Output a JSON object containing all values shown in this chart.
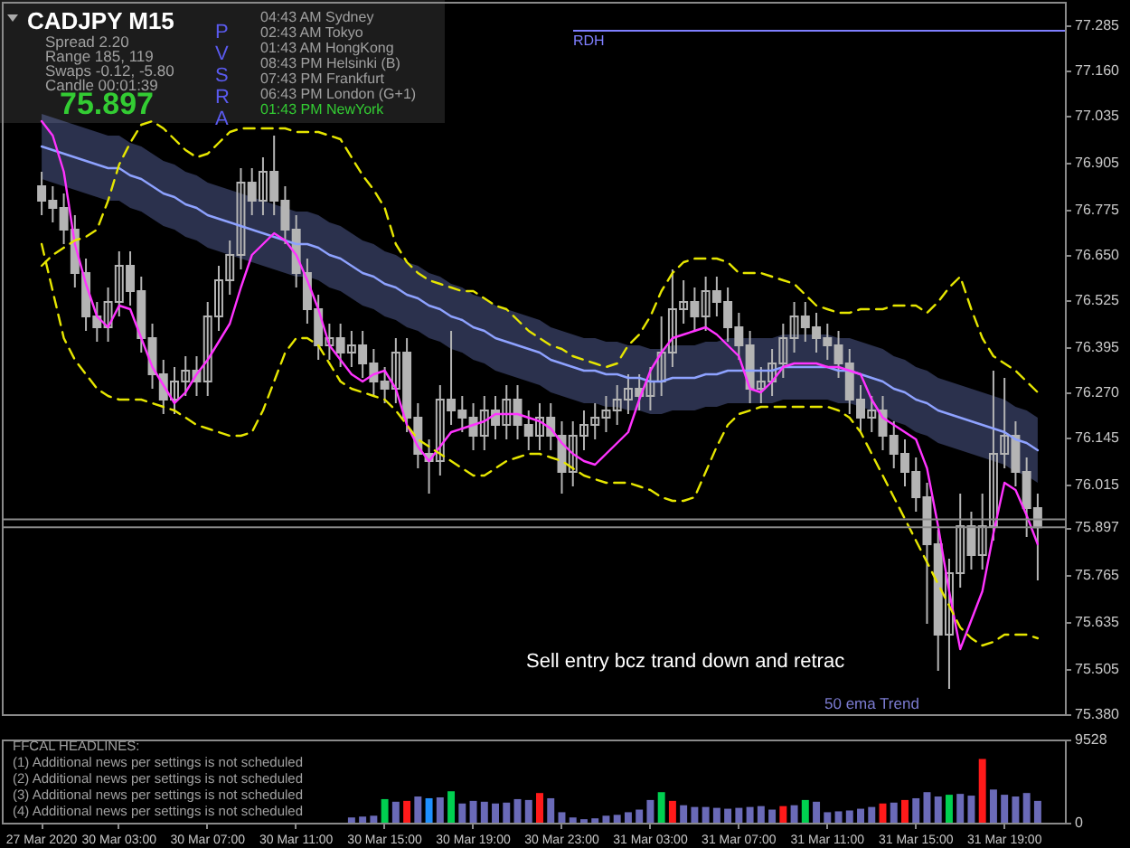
{
  "chart_data": [
    {
      "type": "candlestick",
      "title": "CADJPY M15",
      "categories": [
        null,
        null,
        null,
        null,
        null,
        null,
        null,
        null,
        null,
        null,
        null,
        null,
        null,
        null,
        null,
        null,
        null,
        null,
        null,
        null,
        null,
        null,
        null,
        null,
        null,
        null,
        null,
        null,
        null,
        null,
        null,
        null,
        null,
        null,
        null,
        null,
        null,
        null,
        null,
        null,
        null,
        null,
        null,
        null,
        null,
        null,
        null,
        null,
        null,
        null,
        null,
        null,
        null,
        null,
        null,
        null,
        null,
        null,
        null,
        null,
        null,
        null,
        null,
        null,
        null,
        null,
        null,
        null,
        null,
        null,
        null,
        null,
        null,
        null,
        null,
        null,
        null,
        null,
        null,
        null,
        null,
        null,
        null,
        null,
        null,
        null,
        null,
        null,
        null,
        null,
        null
      ],
      "ohlc": [
        [
          76.84,
          76.88,
          76.76,
          76.8
        ],
        [
          76.8,
          76.84,
          76.74,
          76.78
        ],
        [
          76.78,
          76.82,
          76.68,
          76.72
        ],
        [
          76.72,
          76.76,
          76.56,
          76.6
        ],
        [
          76.6,
          76.64,
          76.44,
          76.48
        ],
        [
          76.48,
          76.52,
          76.41,
          76.45
        ],
        [
          76.45,
          76.56,
          76.41,
          76.52
        ],
        [
          76.52,
          76.66,
          76.48,
          76.62
        ],
        [
          76.62,
          76.66,
          76.51,
          76.55
        ],
        [
          76.55,
          76.59,
          76.38,
          76.42
        ],
        [
          76.42,
          76.46,
          76.28,
          76.32
        ],
        [
          76.32,
          76.36,
          76.21,
          76.25
        ],
        [
          76.25,
          76.34,
          76.21,
          76.3
        ],
        [
          76.3,
          76.37,
          76.26,
          76.33
        ],
        [
          76.33,
          76.37,
          76.26,
          76.3
        ],
        [
          76.3,
          76.52,
          76.26,
          76.48
        ],
        [
          76.48,
          76.62,
          76.44,
          76.58
        ],
        [
          76.58,
          76.69,
          76.54,
          76.65
        ],
        [
          76.65,
          76.89,
          76.61,
          76.85
        ],
        [
          76.85,
          76.89,
          76.76,
          76.8
        ],
        [
          76.8,
          76.92,
          76.76,
          76.88
        ],
        [
          76.88,
          76.98,
          76.76,
          76.8
        ],
        [
          76.8,
          76.84,
          76.68,
          76.72
        ],
        [
          76.72,
          76.76,
          76.56,
          76.6
        ],
        [
          76.6,
          76.64,
          76.46,
          76.5
        ],
        [
          76.5,
          76.54,
          76.36,
          76.4
        ],
        [
          76.4,
          76.46,
          76.36,
          76.42
        ],
        [
          76.42,
          76.46,
          76.34,
          76.38
        ],
        [
          76.38,
          76.44,
          76.34,
          76.4
        ],
        [
          76.4,
          76.44,
          76.31,
          76.35
        ],
        [
          76.35,
          76.39,
          76.26,
          76.3
        ],
        [
          76.3,
          76.34,
          76.24,
          76.28
        ],
        [
          76.28,
          76.42,
          76.24,
          76.38
        ],
        [
          76.38,
          76.42,
          76.16,
          76.2
        ],
        [
          76.2,
          76.24,
          76.06,
          76.1
        ],
        [
          76.1,
          76.14,
          75.99,
          76.08
        ],
        [
          76.08,
          76.29,
          76.04,
          76.25
        ],
        [
          76.25,
          76.44,
          76.18,
          76.22
        ],
        [
          76.22,
          76.26,
          76.16,
          76.2
        ],
        [
          76.2,
          76.24,
          76.11,
          76.15
        ],
        [
          76.15,
          76.26,
          76.11,
          76.22
        ],
        [
          76.22,
          76.26,
          76.14,
          76.18
        ],
        [
          76.18,
          76.29,
          76.14,
          76.25
        ],
        [
          76.25,
          76.29,
          76.14,
          76.18
        ],
        [
          76.18,
          76.22,
          76.11,
          76.15
        ],
        [
          76.15,
          76.24,
          76.11,
          76.2
        ],
        [
          76.2,
          76.24,
          76.11,
          76.15
        ],
        [
          76.15,
          76.19,
          75.99,
          76.05
        ],
        [
          76.05,
          76.19,
          76.01,
          76.15
        ],
        [
          76.15,
          76.22,
          76.11,
          76.18
        ],
        [
          76.18,
          76.24,
          76.14,
          76.2
        ],
        [
          76.2,
          76.26,
          76.16,
          76.22
        ],
        [
          76.22,
          76.29,
          76.18,
          76.25
        ],
        [
          76.25,
          76.32,
          76.21,
          76.28
        ],
        [
          76.28,
          76.32,
          76.22,
          76.26
        ],
        [
          76.26,
          76.34,
          76.22,
          76.3
        ],
        [
          76.3,
          76.48,
          76.26,
          76.38
        ],
        [
          76.38,
          76.61,
          76.34,
          76.5
        ],
        [
          76.5,
          76.58,
          76.46,
          76.52
        ],
        [
          76.52,
          76.56,
          76.44,
          76.48
        ],
        [
          76.48,
          76.59,
          76.44,
          76.55
        ],
        [
          76.55,
          76.59,
          76.48,
          76.52
        ],
        [
          76.52,
          76.56,
          76.41,
          76.45
        ],
        [
          76.45,
          76.49,
          76.36,
          76.4
        ],
        [
          76.4,
          76.44,
          76.24,
          76.28
        ],
        [
          76.28,
          76.34,
          76.24,
          76.3
        ],
        [
          76.3,
          76.39,
          76.26,
          76.35
        ],
        [
          76.35,
          76.46,
          76.31,
          76.42
        ],
        [
          76.42,
          76.52,
          76.38,
          76.48
        ],
        [
          76.48,
          76.52,
          76.41,
          76.45
        ],
        [
          76.45,
          76.49,
          76.38,
          76.42
        ],
        [
          76.42,
          76.46,
          76.36,
          76.4
        ],
        [
          76.4,
          76.44,
          76.31,
          76.35
        ],
        [
          76.35,
          76.39,
          76.21,
          76.25
        ],
        [
          76.25,
          76.29,
          76.16,
          76.2
        ],
        [
          76.2,
          76.26,
          76.16,
          76.22
        ],
        [
          76.22,
          76.26,
          76.11,
          76.15
        ],
        [
          76.15,
          76.19,
          76.06,
          76.1
        ],
        [
          76.1,
          76.14,
          76.01,
          76.05
        ],
        [
          76.05,
          76.09,
          75.94,
          75.98
        ],
        [
          75.98,
          76.02,
          75.63,
          75.85
        ],
        [
          75.85,
          75.89,
          75.5,
          75.6
        ],
        [
          75.6,
          75.81,
          75.45,
          75.77
        ],
        [
          75.77,
          75.99,
          75.73,
          75.9
        ],
        [
          75.9,
          75.94,
          75.78,
          75.82
        ],
        [
          75.82,
          75.99,
          75.78,
          75.9
        ],
        [
          75.9,
          76.33,
          75.86,
          76.1
        ],
        [
          76.1,
          76.31,
          76.06,
          76.15
        ],
        [
          76.15,
          76.19,
          76.01,
          76.05
        ],
        [
          76.05,
          76.09,
          75.87,
          75.95
        ],
        [
          75.95,
          75.99,
          75.75,
          75.897
        ]
      ],
      "color": "#b4b4b4",
      "series": [
        {
          "type": "line",
          "color": "#8ea2ff",
          "values": [
            76.95,
            76.94,
            76.93,
            76.92,
            76.91,
            76.9,
            76.89,
            76.89,
            76.87,
            76.86,
            76.84,
            76.82,
            76.81,
            76.79,
            76.78,
            76.76,
            76.75,
            76.74,
            76.73,
            76.72,
            76.71,
            76.7,
            76.69,
            76.68,
            76.68,
            76.67,
            76.65,
            76.64,
            76.62,
            76.6,
            76.59,
            76.57,
            76.56,
            76.54,
            76.53,
            76.51,
            76.5,
            76.48,
            76.47,
            76.45,
            76.44,
            76.42,
            76.41,
            76.4,
            76.39,
            76.38,
            76.36,
            76.35,
            76.34,
            76.33,
            76.33,
            76.32,
            76.32,
            76.31,
            76.31,
            76.3,
            76.3,
            76.31,
            76.31,
            76.31,
            76.32,
            76.32,
            76.33,
            76.33,
            76.33,
            76.33,
            76.33,
            76.34,
            76.34,
            76.34,
            76.34,
            76.34,
            76.33,
            76.33,
            76.32,
            76.31,
            76.3,
            76.28,
            76.27,
            76.25,
            76.24,
            76.22,
            76.21,
            76.2,
            76.19,
            76.18,
            76.17,
            76.16,
            76.14,
            76.13,
            76.11
          ],
          "lower": [
            76.86,
            76.85,
            76.84,
            76.83,
            76.82,
            76.81,
            76.8,
            76.8,
            76.78,
            76.77,
            76.75,
            76.73,
            76.72,
            76.7,
            76.69,
            76.67,
            76.66,
            76.65,
            76.64,
            76.63,
            76.62,
            76.61,
            76.6,
            76.59,
            76.59,
            76.58,
            76.56,
            76.55,
            76.53,
            76.51,
            76.5,
            76.48,
            76.47,
            76.45,
            76.44,
            76.42,
            76.41,
            76.39,
            76.38,
            76.36,
            76.35,
            76.33,
            76.32,
            76.31,
            76.3,
            76.29,
            76.27,
            76.26,
            76.25,
            76.24,
            76.24,
            76.23,
            76.23,
            76.22,
            76.22,
            76.21,
            76.21,
            76.22,
            76.22,
            76.22,
            76.23,
            76.23,
            76.24,
            76.24,
            76.24,
            76.24,
            76.24,
            76.25,
            76.25,
            76.25,
            76.25,
            76.25,
            76.24,
            76.24,
            76.23,
            76.22,
            76.21,
            76.19,
            76.18,
            76.16,
            76.15,
            76.13,
            76.12,
            76.11,
            76.1,
            76.09,
            76.08,
            76.07,
            76.05,
            76.04,
            76.02
          ],
          "upper": [
            77.04,
            77.03,
            77.02,
            77.01,
            77.0,
            76.99,
            76.98,
            76.98,
            76.96,
            76.95,
            76.93,
            76.91,
            76.9,
            76.88,
            76.87,
            76.85,
            76.84,
            76.83,
            76.82,
            76.81,
            76.8,
            76.79,
            76.78,
            76.77,
            76.77,
            76.76,
            76.74,
            76.73,
            76.71,
            76.69,
            76.68,
            76.66,
            76.65,
            76.63,
            76.62,
            76.6,
            76.59,
            76.57,
            76.56,
            76.54,
            76.53,
            76.51,
            76.5,
            76.49,
            76.48,
            76.47,
            76.45,
            76.44,
            76.43,
            76.42,
            76.42,
            76.41,
            76.41,
            76.4,
            76.4,
            76.39,
            76.39,
            76.4,
            76.4,
            76.4,
            76.41,
            76.41,
            76.42,
            76.42,
            76.42,
            76.42,
            76.42,
            76.43,
            76.43,
            76.43,
            76.43,
            76.43,
            76.42,
            76.42,
            76.41,
            76.4,
            76.39,
            76.37,
            76.36,
            76.34,
            76.33,
            76.31,
            76.3,
            76.29,
            76.28,
            76.27,
            76.26,
            76.25,
            76.23,
            76.22,
            76.2
          ]
        },
        {
          "type": "line",
          "color": "#ff33ff",
          "values": [
            77.02,
            76.98,
            76.88,
            76.68,
            76.57,
            76.48,
            76.45,
            76.51,
            76.5,
            76.42,
            76.34,
            76.29,
            76.24,
            76.27,
            76.32,
            76.36,
            76.41,
            76.46,
            76.56,
            76.65,
            76.68,
            76.71,
            76.69,
            76.65,
            76.58,
            76.5,
            76.4,
            76.36,
            76.32,
            76.3,
            76.32,
            76.33,
            76.28,
            76.18,
            76.12,
            76.08,
            76.12,
            76.16,
            76.17,
            76.18,
            76.19,
            76.21,
            76.21,
            76.21,
            76.2,
            76.19,
            76.17,
            76.13,
            76.1,
            76.08,
            76.07,
            76.1,
            76.13,
            76.16,
            76.25,
            76.33,
            76.38,
            76.42,
            76.43,
            76.44,
            76.45,
            76.43,
            76.4,
            76.37,
            76.28,
            76.27,
            76.3,
            76.34,
            76.35,
            76.35,
            76.35,
            76.34,
            76.34,
            76.33,
            76.32,
            76.25,
            76.2,
            76.18,
            76.16,
            76.14,
            76.06,
            75.9,
            75.72,
            75.56,
            75.64,
            75.72,
            75.88,
            76.02,
            76.0,
            75.93,
            75.85
          ]
        },
        {
          "type": "line",
          "color": "#e6e600",
          "line_style": "dashed",
          "values": [
            76.62,
            76.65,
            76.67,
            76.69,
            76.7,
            76.72,
            76.8,
            76.9,
            76.96,
            77.01,
            77.02,
            77.0,
            76.97,
            76.94,
            76.92,
            76.93,
            76.96,
            76.99,
            77.0,
            77.0,
            77.0,
            77.0,
            77.0,
            76.99,
            76.99,
            76.99,
            76.98,
            76.97,
            76.92,
            76.87,
            76.83,
            76.78,
            76.68,
            76.63,
            76.6,
            76.58,
            76.57,
            76.56,
            76.55,
            76.55,
            76.53,
            76.51,
            76.5,
            76.47,
            76.44,
            76.42,
            76.4,
            76.39,
            76.37,
            76.36,
            76.35,
            76.34,
            76.35,
            76.4,
            76.43,
            76.48,
            76.55,
            76.6,
            76.63,
            76.64,
            76.64,
            76.64,
            76.63,
            76.6,
            76.6,
            76.6,
            76.59,
            76.58,
            76.57,
            76.54,
            76.51,
            76.5,
            76.49,
            76.49,
            76.5,
            76.5,
            76.5,
            76.51,
            76.51,
            76.51,
            76.49,
            76.52,
            76.56,
            76.59,
            76.5,
            76.42,
            76.37,
            76.35,
            76.33,
            76.3,
            76.27
          ]
        },
        {
          "type": "line",
          "color": "#e6e600",
          "line_style": "dashed",
          "values": [
            76.68,
            76.55,
            76.42,
            76.36,
            76.32,
            76.28,
            76.26,
            76.25,
            76.25,
            76.25,
            76.24,
            76.23,
            76.22,
            76.2,
            76.18,
            76.17,
            76.16,
            76.15,
            76.15,
            76.16,
            76.22,
            76.3,
            76.38,
            76.42,
            76.42,
            76.4,
            76.35,
            76.3,
            76.28,
            76.27,
            76.26,
            76.25,
            76.22,
            76.18,
            76.14,
            76.12,
            76.1,
            76.08,
            76.06,
            76.04,
            76.04,
            76.06,
            76.08,
            76.09,
            76.1,
            76.1,
            76.09,
            76.08,
            76.06,
            76.04,
            76.03,
            76.02,
            76.02,
            76.02,
            76.01,
            76.0,
            75.98,
            75.97,
            75.97,
            75.98,
            76.05,
            76.12,
            76.18,
            76.21,
            76.22,
            76.23,
            76.23,
            76.23,
            76.23,
            76.23,
            76.23,
            76.23,
            76.22,
            76.2,
            76.16,
            76.1,
            76.04,
            75.98,
            75.92,
            75.86,
            75.8,
            75.74,
            75.68,
            75.62,
            75.59,
            75.57,
            75.58,
            75.6,
            75.6,
            75.6,
            75.59
          ]
        }
      ],
      "ylim": [
        75.38,
        77.35
      ],
      "yticks": [
        77.285,
        {
          "value": 77.16,
          "label": "77.160"
        },
        77.035,
        76.905,
        76.775,
        {
          "value": 76.65,
          "label": "76.650"
        },
        76.525,
        76.395,
        {
          "value": 76.27,
          "label": "76.270"
        },
        76.145,
        76.015,
        75.897,
        75.765,
        75.635,
        75.505,
        {
          "value": 75.38,
          "label": "75.380"
        }
      ],
      "ref_lines": [
        {
          "axis": "y",
          "value": 77.27,
          "label": "RDH",
          "color": "#7f7fff"
        },
        {
          "axis": "y",
          "value": 75.919,
          "color": "#8a8a8a"
        },
        {
          "axis": "y",
          "value": 75.897,
          "color": "#8a8a8a"
        }
      ],
      "annotations": [
        "Spread 2.20",
        "Range 185, 119",
        "Swaps -0.12, -5.80",
        "Candle 00:01:39",
        "75.897",
        "PVSRA",
        "04:43 AM Sydney",
        "02:43 AM Tokyo",
        "01:43 AM HongKong",
        "08:43 PM Helsinki (B)",
        "07:43 PM Frankfurt",
        "06:43 PM London (G+1)",
        "01:43 PM NewYork",
        "Sell entry bcz trand down and retrac",
        "50 ema Trend"
      ],
      "tick_labels": "y"
    },
    {
      "type": "bar",
      "categories": [
        "27 Mar 2020",
        null,
        null,
        null,
        null,
        null,
        null,
        "30 Mar 03:00",
        null,
        null,
        null,
        null,
        null,
        null,
        null,
        "30 Mar 07:00",
        null,
        null,
        null,
        null,
        null,
        null,
        null,
        "30 Mar 11:00",
        null,
        null,
        null,
        null,
        null,
        null,
        null,
        "30 Mar 15:00",
        null,
        null,
        null,
        null,
        null,
        null,
        null,
        "30 Mar 19:00",
        null,
        null,
        null,
        null,
        null,
        null,
        null,
        "30 Mar 23:00",
        null,
        null,
        null,
        null,
        null,
        null,
        null,
        "31 Mar 03:00",
        null,
        null,
        null,
        null,
        null,
        null,
        null,
        "31 Mar 07:00",
        null,
        null,
        null,
        null,
        null,
        null,
        null,
        "31 Mar 11:00",
        null,
        null,
        null,
        null,
        null,
        null,
        null,
        "31 Mar 15:00",
        null,
        null,
        null,
        null,
        null,
        null,
        null,
        "31 Mar 19:00",
        null,
        null,
        null
      ],
      "values": [
        null,
        null,
        null,
        null,
        null,
        null,
        null,
        null,
        null,
        null,
        null,
        null,
        null,
        null,
        null,
        null,
        null,
        null,
        null,
        null,
        null,
        null,
        null,
        null,
        null,
        null,
        null,
        null,
        600,
        700,
        800,
        2700,
        2400,
        2500,
        3000,
        2800,
        2900,
        3600,
        2200,
        2500,
        2400,
        2200,
        2300,
        2700,
        2600,
        3400,
        2800,
        1200,
        600,
        400,
        500,
        800,
        900,
        1200,
        1500,
        2600,
        3500,
        2500,
        2000,
        1800,
        1800,
        1700,
        1600,
        1700,
        1800,
        1900,
        1500,
        1900,
        2000,
        2600,
        2400,
        1200,
        1300,
        1400,
        1600,
        1800,
        2200,
        2300,
        2600,
        2800,
        3500,
        3000,
        3200,
        3300,
        3100,
        7300,
        3800,
        3200,
        3000,
        3400,
        2500
      ],
      "colors": [
        null,
        null,
        null,
        null,
        null,
        null,
        null,
        null,
        null,
        null,
        null,
        null,
        null,
        null,
        null,
        null,
        null,
        null,
        null,
        null,
        null,
        null,
        null,
        null,
        null,
        null,
        null,
        null,
        "#6a6ab8",
        "#6a6ab8",
        "#6a6ab8",
        "#00d050",
        "#6a6ab8",
        "#ff1a1a",
        "#6a6ab8",
        "#1e90ff",
        "#6a6ab8",
        "#00d050",
        "#6a6ab8",
        "#6a6ab8",
        "#6a6ab8",
        "#6a6ab8",
        "#6a6ab8",
        "#6a6ab8",
        "#6a6ab8",
        "#ff1a1a",
        "#6a6ab8",
        "#6a6ab8",
        "#6a6ab8",
        "#6a6ab8",
        "#6a6ab8",
        "#6a6ab8",
        "#6a6ab8",
        "#6a6ab8",
        "#6a6ab8",
        "#6a6ab8",
        "#00d050",
        "#ff1a1a",
        "#6a6ab8",
        "#6a6ab8",
        "#6a6ab8",
        "#6a6ab8",
        "#6a6ab8",
        "#6a6ab8",
        "#6a6ab8",
        "#6a6ab8",
        "#6a6ab8",
        "#ff1a1a",
        "#6a6ab8",
        "#00d050",
        "#6a6ab8",
        "#6a6ab8",
        "#6a6ab8",
        "#6a6ab8",
        "#6a6ab8",
        "#6a6ab8",
        "#ff1a1a",
        "#6a6ab8",
        "#ff1a1a",
        "#6a6ab8",
        "#6a6ab8",
        "#6a6ab8",
        "#00d050",
        "#6a6ab8",
        "#6a6ab8",
        "#ff1a1a",
        "#6a6ab8",
        "#6a6ab8",
        "#6a6ab8",
        "#6a6ab8",
        "#6a6ab8"
      ],
      "ylim": [
        0,
        9528
      ],
      "yticks": [
        0,
        9528
      ],
      "annotations": [
        "FFCAL HEADLINES:",
        "(1) Additional news per settings is not scheduled",
        "(2) Additional news per settings is not scheduled",
        "(3) Additional news per settings is not scheduled",
        "(4) Additional news per settings is not scheduled"
      ]
    }
  ]
}
